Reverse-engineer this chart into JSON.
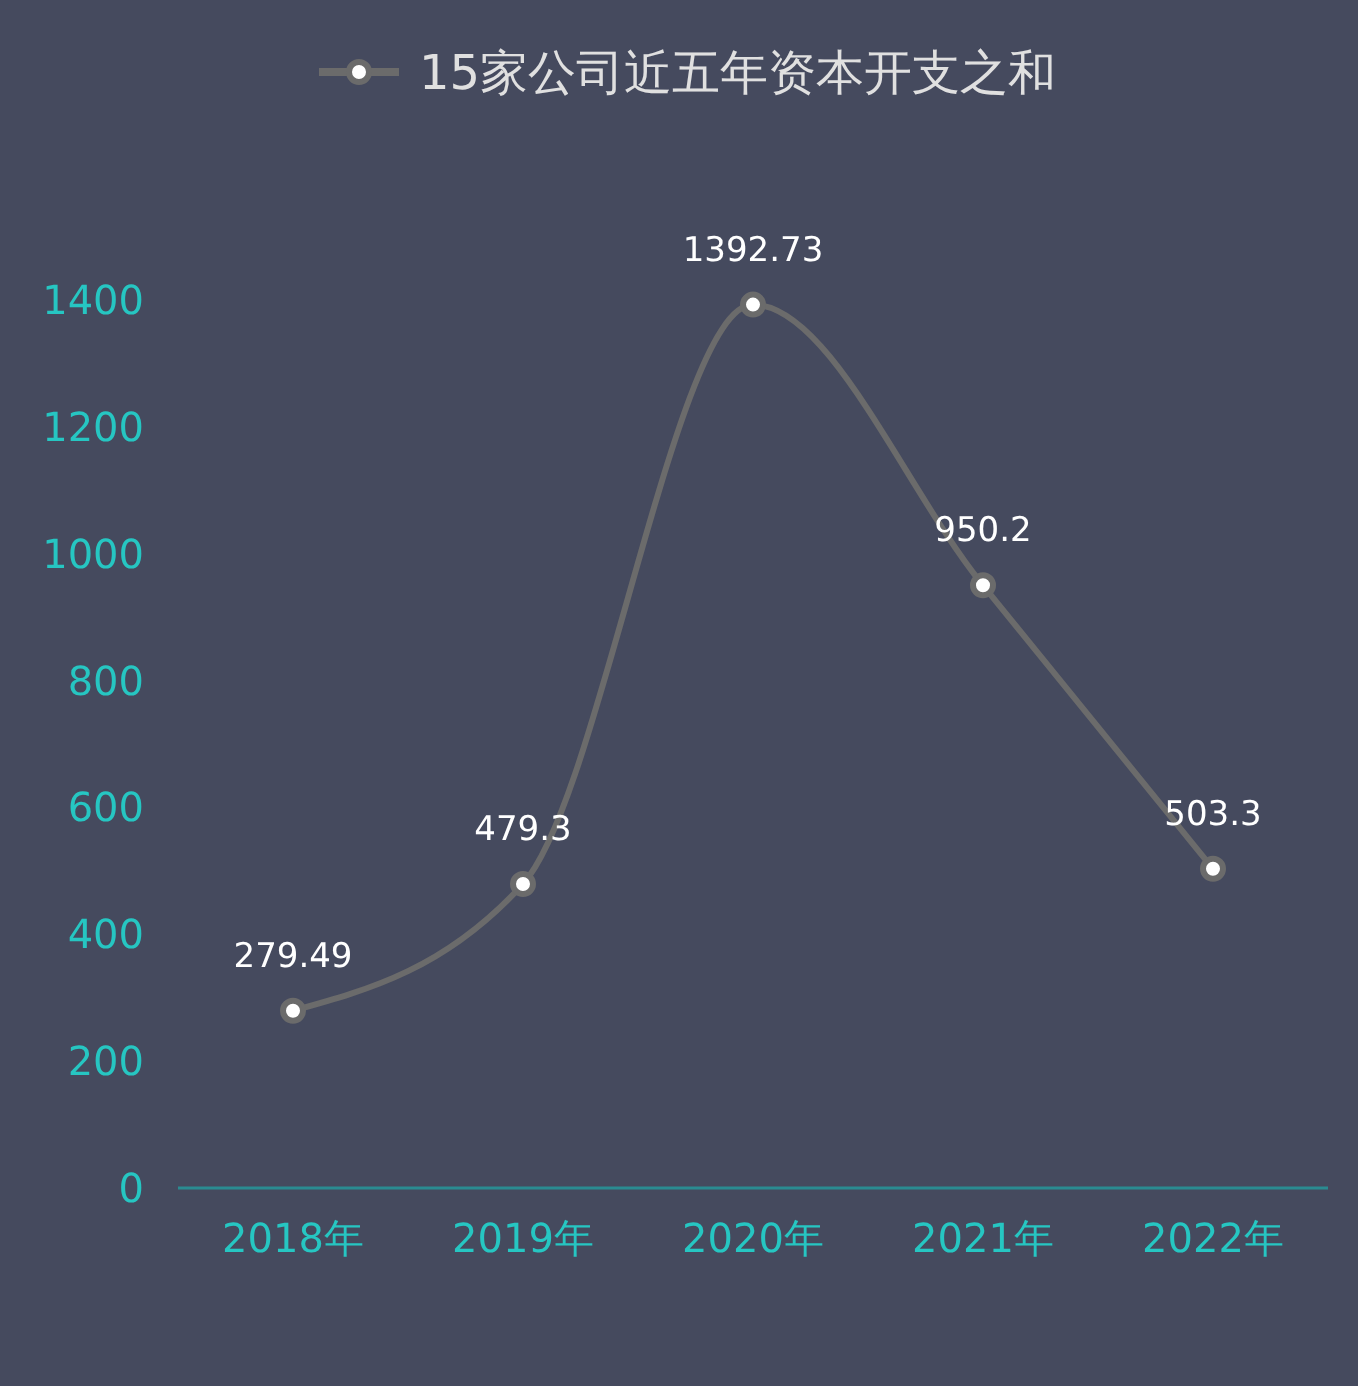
{
  "chart_data": {
    "type": "line",
    "categories": [
      "2018年",
      "2019年",
      "2020年",
      "2021年",
      "2022年"
    ],
    "series": [
      {
        "name": "15家公司近五年资本开支之和",
        "color": "#6b6b6b",
        "values": [
          279.49,
          479.3,
          1392.73,
          950.2,
          503.3
        ]
      }
    ],
    "ylim": [
      0,
      1400
    ],
    "yticks": [
      0,
      200,
      400,
      600,
      800,
      1000,
      1200,
      1400
    ],
    "grid": false,
    "legend": "top",
    "marker": "circle",
    "data_labels": true
  }
}
